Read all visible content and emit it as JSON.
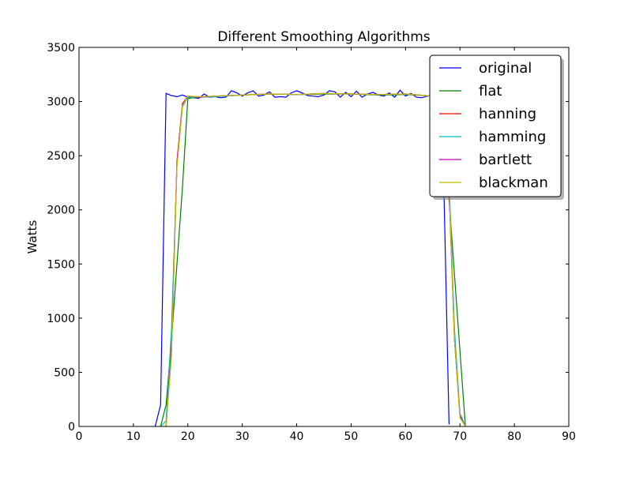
{
  "chart_data": {
    "type": "line",
    "title": "Different Smoothing Algorithms",
    "xlabel": "",
    "ylabel": "Watts",
    "xlim": [
      0,
      90
    ],
    "ylim": [
      0,
      3500
    ],
    "x_ticks": [
      0,
      10,
      20,
      30,
      40,
      50,
      60,
      70,
      80,
      90
    ],
    "y_ticks": [
      0,
      500,
      1000,
      1500,
      2000,
      2500,
      3000,
      3500
    ],
    "grid": false,
    "legend_position": "top-right",
    "series": [
      {
        "name": "original",
        "color": "#0000ff",
        "x": [
          14,
          15,
          16,
          17,
          18,
          19,
          20,
          21,
          22,
          23,
          24,
          25,
          26,
          27,
          28,
          29,
          30,
          31,
          32,
          33,
          34,
          35,
          36,
          37,
          38,
          39,
          40,
          41,
          42,
          43,
          44,
          45,
          46,
          47,
          48,
          49,
          50,
          51,
          52,
          53,
          54,
          55,
          56,
          57,
          58,
          59,
          60,
          61,
          62,
          63,
          64,
          65,
          66,
          67,
          68
        ],
        "y": [
          0,
          200,
          3075,
          3055,
          3045,
          3060,
          3040,
          3035,
          3030,
          3070,
          3040,
          3045,
          3035,
          3040,
          3100,
          3080,
          3050,
          3080,
          3100,
          3050,
          3060,
          3090,
          3040,
          3045,
          3040,
          3080,
          3100,
          3080,
          3055,
          3050,
          3045,
          3060,
          3100,
          3090,
          3040,
          3085,
          3045,
          3095,
          3040,
          3070,
          3085,
          3060,
          3050,
          3080,
          3040,
          3105,
          3050,
          3075,
          3040,
          3035,
          3050,
          3055,
          3050,
          2300,
          20
        ]
      },
      {
        "name": "flat",
        "color": "#008000",
        "x": [
          15,
          16,
          17,
          18,
          19,
          20,
          22,
          25,
          30,
          35,
          40,
          45,
          50,
          55,
          60,
          65,
          66,
          67,
          68,
          69,
          70,
          71
        ],
        "y": [
          0,
          200,
          800,
          1500,
          2200,
          3030,
          3040,
          3045,
          3060,
          3070,
          3065,
          3070,
          3070,
          3060,
          3065,
          3050,
          3040,
          2800,
          2100,
          1400,
          700,
          0
        ]
      },
      {
        "name": "hanning",
        "color": "#ff0000",
        "x": [
          16,
          17,
          18,
          19,
          20,
          22,
          25,
          30,
          35,
          40,
          45,
          50,
          55,
          60,
          65,
          66,
          67,
          68,
          69,
          70,
          71
        ],
        "y": [
          0,
          700,
          2450,
          2980,
          3050,
          3040,
          3050,
          3060,
          3070,
          3065,
          3075,
          3070,
          3065,
          3070,
          3050,
          3030,
          3000,
          2200,
          800,
          100,
          0
        ]
      },
      {
        "name": "hamming",
        "color": "#00bfbf",
        "x": [
          15,
          16,
          17,
          18,
          19,
          20,
          22,
          25,
          30,
          35,
          40,
          45,
          50,
          55,
          60,
          65,
          66,
          67,
          68,
          69,
          70,
          71
        ],
        "y": [
          0,
          50,
          900,
          2400,
          2950,
          3040,
          3040,
          3045,
          3060,
          3070,
          3065,
          3075,
          3070,
          3065,
          3070,
          3050,
          3030,
          2950,
          2300,
          900,
          120,
          0
        ]
      },
      {
        "name": "bartlett",
        "color": "#bf00bf",
        "x": [
          16,
          17,
          18,
          19,
          20,
          22,
          25,
          30,
          35,
          40,
          45,
          50,
          55,
          60,
          65,
          66,
          67,
          68,
          69,
          70,
          71
        ],
        "y": [
          0,
          700,
          2430,
          2970,
          3050,
          3040,
          3050,
          3060,
          3070,
          3065,
          3075,
          3070,
          3065,
          3070,
          3050,
          3030,
          3000,
          2200,
          800,
          100,
          0
        ]
      },
      {
        "name": "blackman",
        "color": "#bfbf00",
        "x": [
          16,
          17,
          18,
          19,
          20,
          22,
          25,
          30,
          35,
          40,
          45,
          50,
          55,
          60,
          65,
          66,
          67,
          68,
          69,
          70,
          71
        ],
        "y": [
          0,
          650,
          2400,
          2960,
          3050,
          3045,
          3050,
          3060,
          3070,
          3065,
          3075,
          3070,
          3065,
          3070,
          3050,
          3030,
          3000,
          2250,
          800,
          80,
          0
        ]
      }
    ]
  }
}
